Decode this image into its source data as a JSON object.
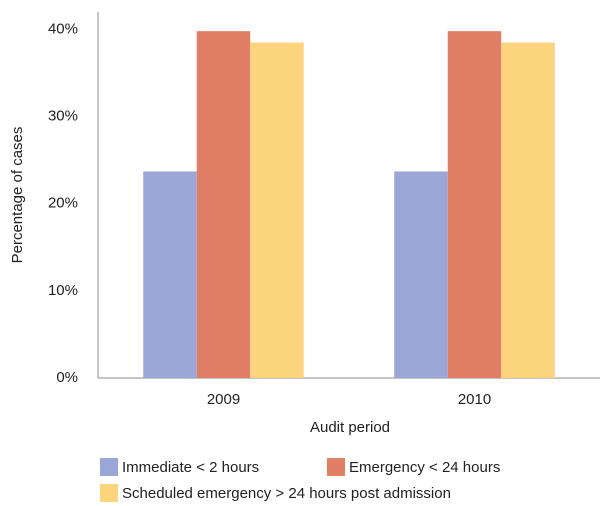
{
  "chart_data": {
    "type": "bar",
    "x_label": "Audit period",
    "y_label": "Percentage of cases",
    "categories": [
      "2009",
      "2010"
    ],
    "series": [
      {
        "name": "Immediate < 2 hours",
        "color": "#9aa6d6",
        "values": [
          23.7,
          23.7
        ]
      },
      {
        "name": "Emergency < 24 hours",
        "color": "#e07f66",
        "values": [
          39.8,
          39.8
        ]
      },
      {
        "name": "Scheduled emergency > 24 hours post admission",
        "color": "#fdd47e",
        "values": [
          38.5,
          38.5
        ]
      }
    ],
    "ylim": [
      0,
      42
    ],
    "yticks": [
      {
        "value": 0,
        "label": "0%"
      },
      {
        "value": 10,
        "label": "10%"
      },
      {
        "value": 20,
        "label": "20%"
      },
      {
        "value": 30,
        "label": "30%"
      },
      {
        "value": 40,
        "label": "40%"
      }
    ],
    "grid": false,
    "legend": "bottom"
  }
}
